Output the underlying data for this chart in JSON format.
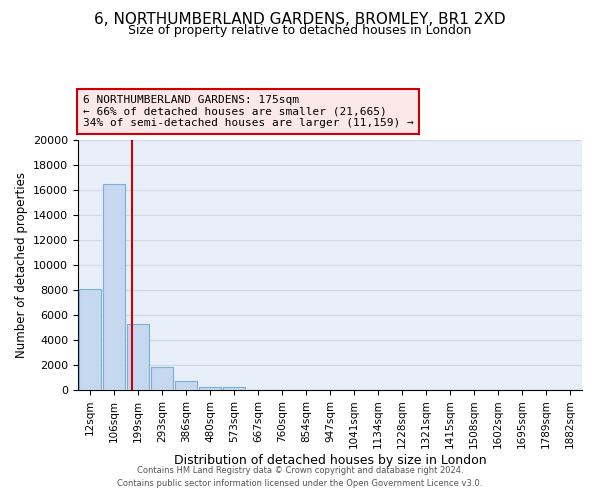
{
  "title": "6, NORTHUMBERLAND GARDENS, BROMLEY, BR1 2XD",
  "subtitle": "Size of property relative to detached houses in London",
  "xlabel": "Distribution of detached houses by size in London",
  "ylabel": "Number of detached properties",
  "footer_line1": "Contains HM Land Registry data © Crown copyright and database right 2024.",
  "footer_line2": "Contains public sector information licensed under the Open Government Licence v3.0.",
  "bar_labels": [
    "12sqm",
    "106sqm",
    "199sqm",
    "293sqm",
    "386sqm",
    "480sqm",
    "573sqm",
    "667sqm",
    "760sqm",
    "854sqm",
    "947sqm",
    "1041sqm",
    "1134sqm",
    "1228sqm",
    "1321sqm",
    "1415sqm",
    "1508sqm",
    "1602sqm",
    "1695sqm",
    "1789sqm",
    "1882sqm"
  ],
  "bar_values": [
    8100,
    16500,
    5300,
    1850,
    750,
    280,
    240,
    0,
    0,
    0,
    0,
    0,
    0,
    0,
    0,
    0,
    0,
    0,
    0,
    0,
    0
  ],
  "bar_color": "#c5d8f0",
  "bar_edge_color": "#7bafd4",
  "annotation_text_line1": "6 NORTHUMBERLAND GARDENS: 175sqm",
  "annotation_text_line2": "← 66% of detached houses are smaller (21,665)",
  "annotation_text_line3": "34% of semi-detached houses are larger (11,159) →",
  "annotation_box_facecolor": "#fce8e8",
  "annotation_box_edgecolor": "#cc0000",
  "vline_color": "#cc0000",
  "ylim": [
    0,
    20000
  ],
  "yticks": [
    0,
    2000,
    4000,
    6000,
    8000,
    10000,
    12000,
    14000,
    16000,
    18000,
    20000
  ],
  "grid_color": "#d0d8e8",
  "background_color": "#ffffff",
  "plot_bg_color": "#e8eef8"
}
